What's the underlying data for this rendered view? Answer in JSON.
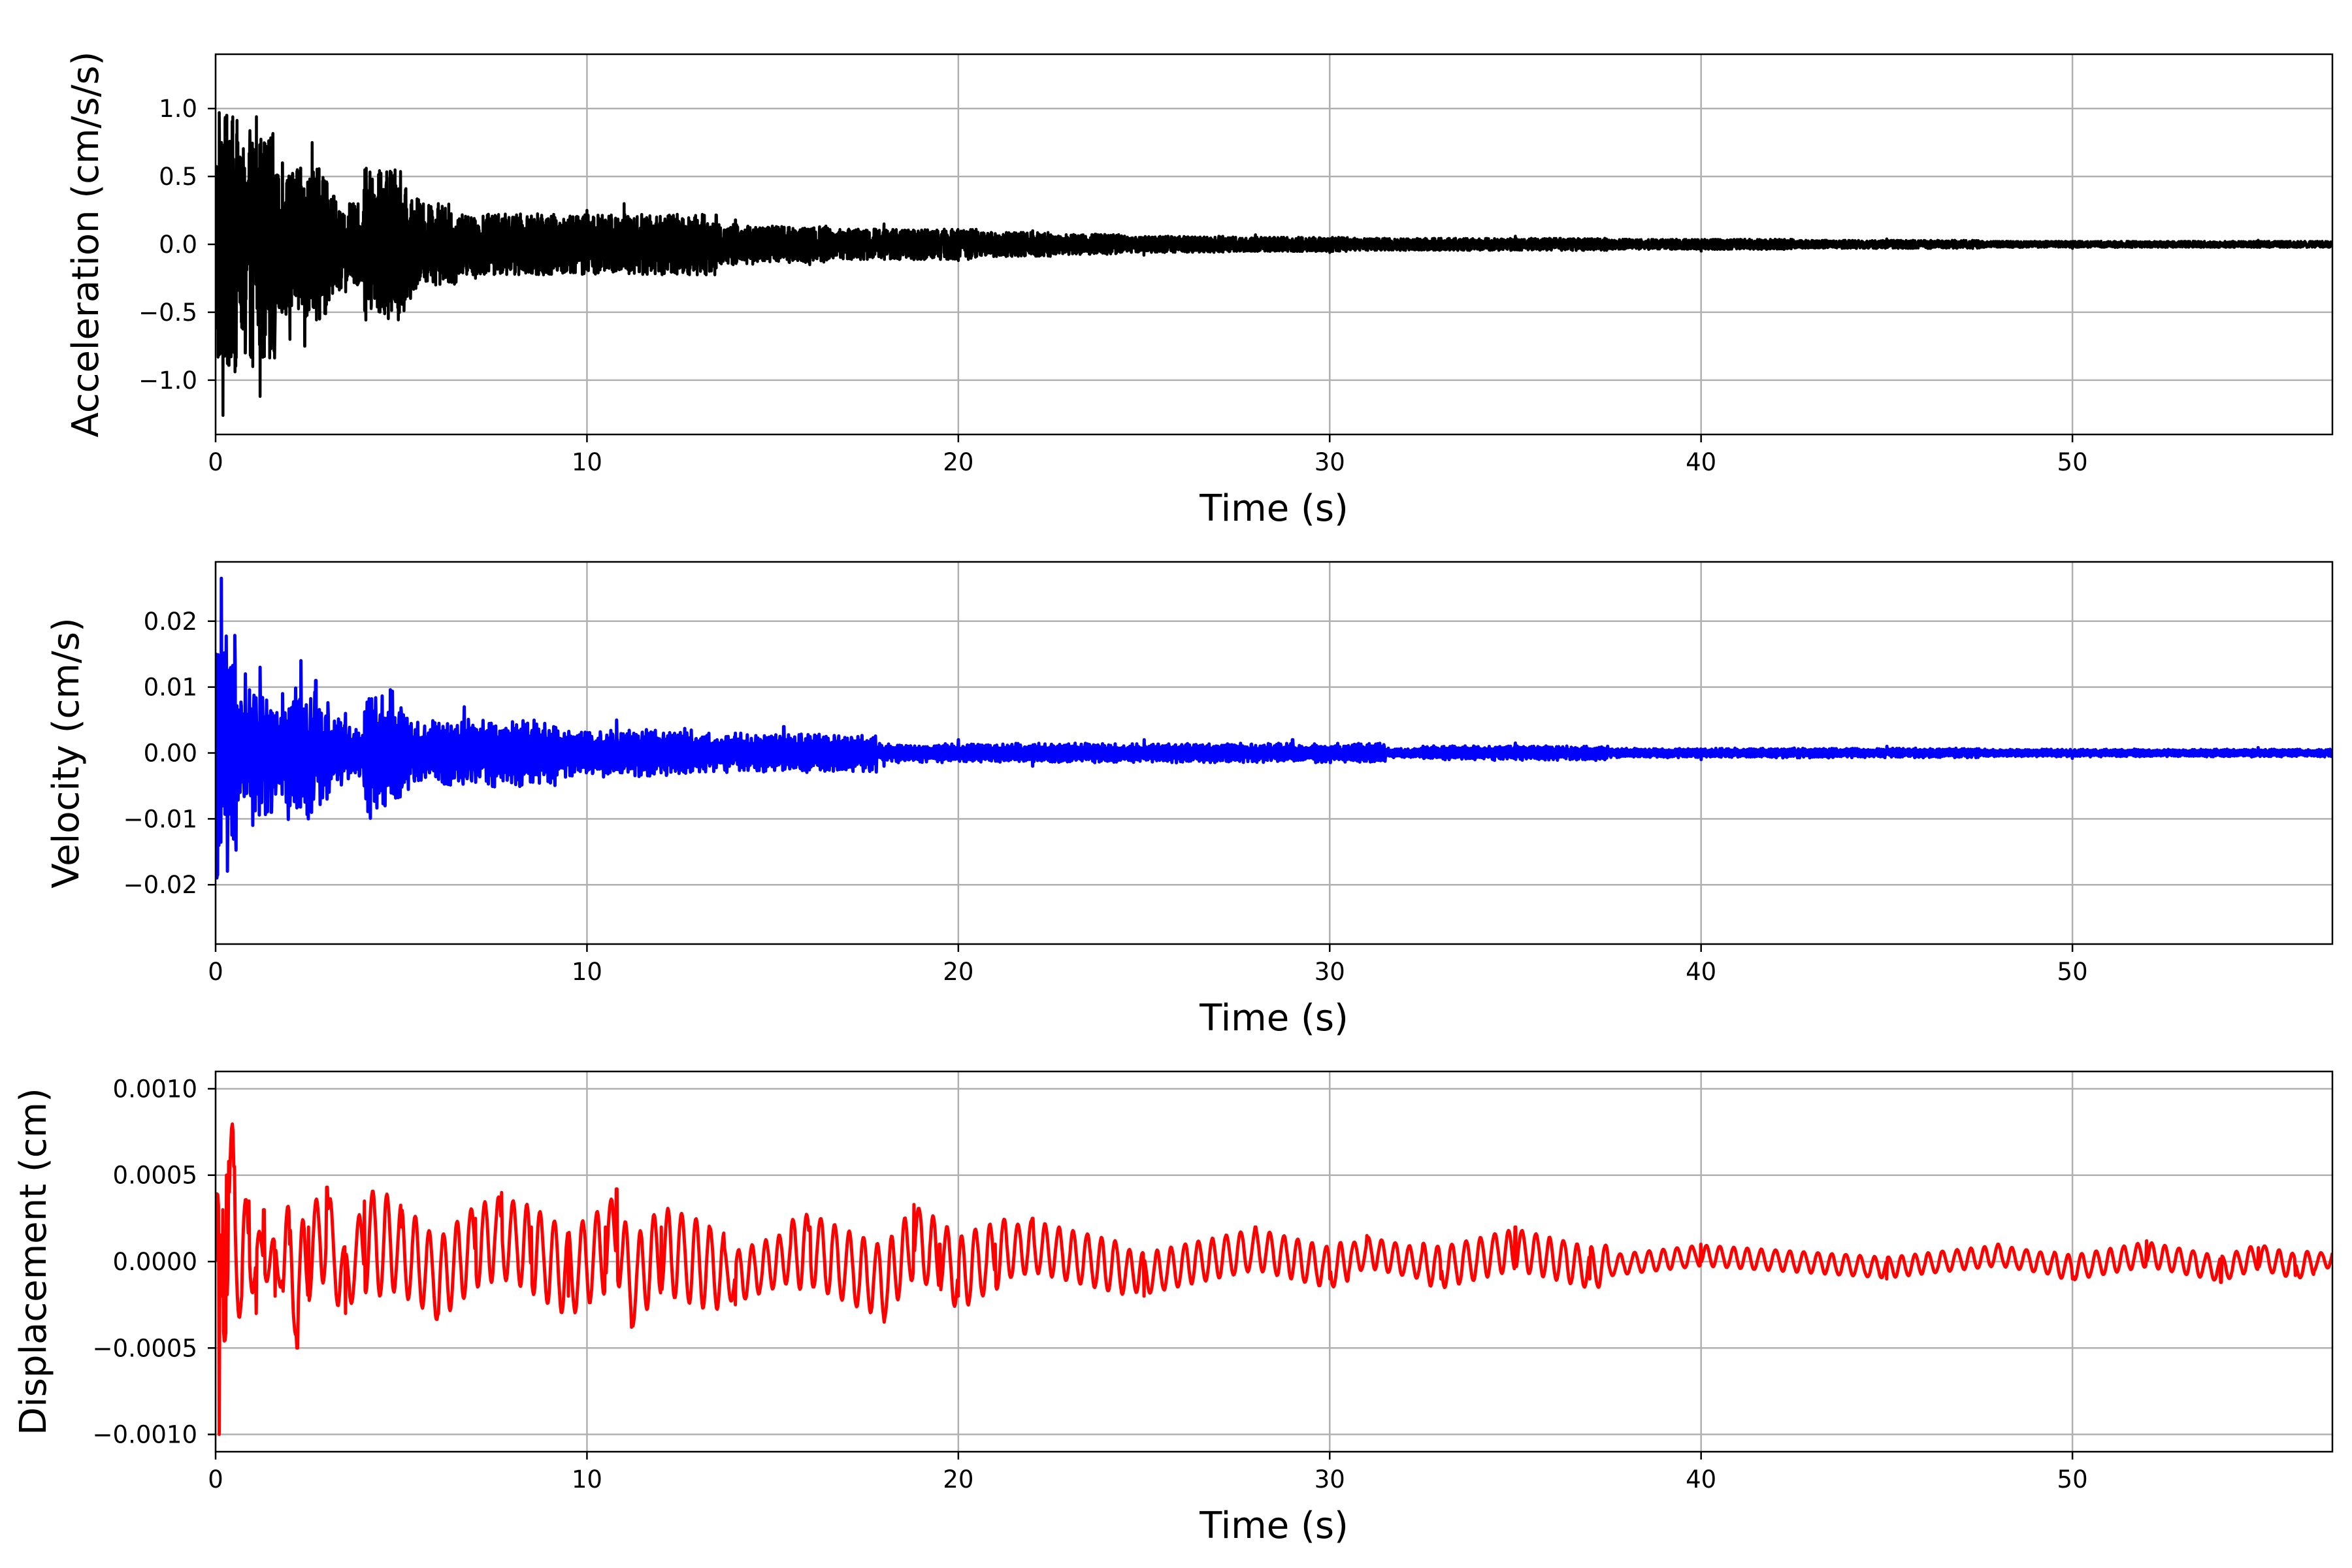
{
  "chart_data": [
    {
      "type": "line",
      "xlabel": "Time (s)",
      "ylabel": "Acceleration (cm/s/s)",
      "xlim": [
        0,
        57
      ],
      "ylim": [
        -1.4,
        1.4
      ],
      "xticks": [
        0,
        10,
        20,
        30,
        40,
        50
      ],
      "xtick_labels": [
        "0",
        "10",
        "20",
        "30",
        "40",
        "50"
      ],
      "yticks": [
        -1.0,
        -0.5,
        0.0,
        0.5,
        1.0
      ],
      "ytick_labels": [
        "−1.0",
        "−0.5",
        "0.0",
        "0.5",
        "1.0"
      ],
      "grid": true,
      "series": [
        {
          "color": "#000000",
          "x": [
            0,
            0.1,
            0.2,
            0.3,
            0.4,
            0.5,
            0.6,
            0.8,
            1.0,
            1.1,
            1.2,
            1.4,
            1.6,
            1.8,
            2.0,
            2.2,
            2.4,
            2.6,
            2.8,
            3.0,
            3.5,
            4,
            5,
            6,
            7,
            8,
            9,
            10,
            11,
            12,
            14,
            16,
            18,
            20,
            22,
            25,
            28,
            30,
            35,
            40,
            45,
            50,
            55,
            57
          ],
          "y": [
            0.0,
            0.97,
            -1.26,
            0.95,
            0.5,
            -0.6,
            0.75,
            -0.8,
            -0.9,
            0.94,
            -1.12,
            0.45,
            -0.65,
            0.6,
            -0.7,
            0.55,
            -0.75,
            0.75,
            -0.55,
            0.45,
            -0.35,
            0.4,
            -0.3,
            0.3,
            -0.25,
            0.2,
            -0.22,
            0.25,
            0.3,
            -0.2,
            0.18,
            -0.15,
            0.15,
            -0.12,
            0.1,
            -0.08,
            0.07,
            -0.06,
            0.06,
            -0.05,
            0.04,
            -0.03,
            0.03,
            0.0
          ]
        }
      ]
    },
    {
      "type": "line",
      "xlabel": "Time (s)",
      "ylabel": "Velocity (cm/s)",
      "xlim": [
        0,
        57
      ],
      "ylim": [
        -0.029,
        0.029
      ],
      "xticks": [
        0,
        10,
        20,
        30,
        40,
        50
      ],
      "xtick_labels": [
        "0",
        "10",
        "20",
        "30",
        "40",
        "50"
      ],
      "yticks": [
        -0.02,
        -0.01,
        0.0,
        0.01,
        0.02
      ],
      "ytick_labels": [
        "−0.02",
        "−0.01",
        "0.00",
        "0.01",
        "0.02"
      ],
      "grid": true,
      "series": [
        {
          "color": "#0000ff",
          "x": [
            0,
            0.05,
            0.15,
            0.2,
            0.3,
            0.5,
            0.8,
            1.0,
            1.2,
            1.5,
            1.8,
            2.0,
            2.3,
            2.5,
            2.7,
            3.0,
            3.5,
            4,
            5,
            6,
            6.7,
            7.5,
            9,
            10.8,
            12,
            14,
            15.3,
            18,
            20,
            22,
            25,
            29,
            30,
            35,
            40,
            45,
            50,
            55,
            57
          ],
          "y": [
            0.0,
            -0.0185,
            0.0265,
            -0.008,
            0.009,
            -0.01,
            0.012,
            -0.011,
            0.013,
            -0.009,
            0.009,
            -0.008,
            0.014,
            -0.01,
            0.011,
            -0.007,
            0.006,
            -0.005,
            0.006,
            -0.004,
            0.007,
            0.004,
            -0.003,
            0.005,
            -0.003,
            0.003,
            0.004,
            -0.002,
            0.002,
            -0.002,
            0.002,
            0.002,
            -0.001,
            0.0015,
            -0.001,
            0.001,
            -0.0008,
            0.0008,
            0.0
          ]
        }
      ]
    },
    {
      "type": "line",
      "xlabel": "Time (s)",
      "ylabel": "Displacement (cm)",
      "xlim": [
        0,
        57
      ],
      "ylim": [
        -0.0011,
        0.0011
      ],
      "xticks": [
        0,
        10,
        20,
        30,
        40,
        50
      ],
      "xtick_labels": [
        "0",
        "10",
        "20",
        "30",
        "40",
        "50"
      ],
      "yticks": [
        -0.001,
        -0.0005,
        0.0,
        0.0005,
        0.001
      ],
      "ytick_labels": [
        "−0.0010",
        "−0.0005",
        "0.0000",
        "0.0005",
        "0.0010"
      ],
      "grid": true,
      "series": [
        {
          "color": "#ff0000",
          "x": [
            0,
            0.1,
            0.2,
            0.3,
            0.35,
            0.5,
            0.7,
            0.9,
            1.1,
            1.3,
            1.6,
            2.0,
            2.2,
            2.5,
            3.0,
            3.5,
            4,
            5,
            6,
            7,
            7.7,
            8.5,
            9.5,
            10.5,
            10.8,
            11.2,
            12,
            14,
            16,
            18,
            18.8,
            19.5,
            20,
            21,
            22,
            25,
            28,
            30,
            31,
            33,
            35,
            37,
            40,
            45,
            48,
            50,
            52,
            54,
            55,
            56,
            57
          ],
          "y": [
            0.0,
            -0.001,
            0.0003,
            0.0005,
            0.00058,
            0.00055,
            -0.0002,
            0.00035,
            -0.0003,
            0.0003,
            -0.0002,
            0.0001,
            -0.0005,
            0.0002,
            0.00043,
            -0.0003,
            0.00035,
            0.0002,
            -0.0003,
            0.00025,
            0.0004,
            0.0002,
            -0.0002,
            0.0002,
            0.00042,
            -0.00038,
            0.0002,
            -0.00025,
            0.0002,
            -0.00035,
            0.00033,
            0.0001,
            -0.0002,
            0.0001,
            0.00025,
            -0.0002,
            0.0002,
            -0.0001,
            0.00015,
            -0.0001,
            0.0002,
            -0.0001,
            0.0001,
            -0.0001,
            0.0001,
            -0.0001,
            0.00012,
            -0.00012,
            8e-05,
            -8e-05,
            5e-05
          ]
        }
      ]
    }
  ]
}
